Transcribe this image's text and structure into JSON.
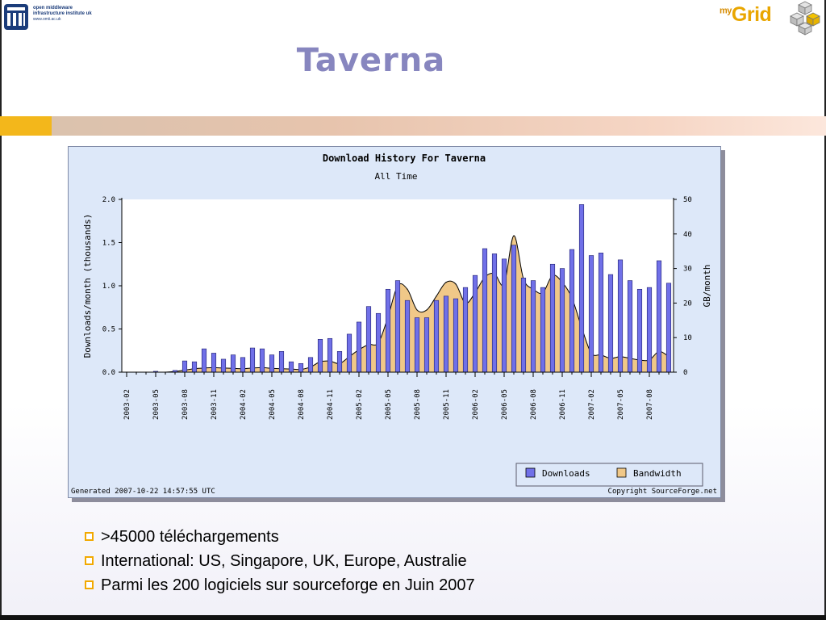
{
  "header": {
    "title": "Taverna",
    "omii_logo": {
      "icon": "omii-logo-icon",
      "line1": "open middleware",
      "line2": "infrastructure institute uk",
      "line3": "www.omii.ac.uk"
    },
    "mygrid_logo": {
      "icon": "mygrid-cube-logo-icon",
      "prefix": "my",
      "word": "Grid"
    }
  },
  "colors": {
    "title": "#8786bf",
    "bullet": "#f2a900",
    "downloads": "#7070e8",
    "bandwidth": "#f0c888",
    "chart_bg": "#dde8f9"
  },
  "chart_data": {
    "type": "bar",
    "title": "Download History For Taverna",
    "subtitle": "All Time",
    "ylabel": "Downloads/month (thousands)",
    "y2label": "GB/month",
    "ylim": [
      0,
      2.0
    ],
    "y2lim": [
      0,
      50
    ],
    "yticks": [
      "0.0",
      "0.5",
      "1.0",
      "1.5",
      "2.0"
    ],
    "y2ticks": [
      "0",
      "10",
      "20",
      "30",
      "40",
      "50"
    ],
    "grid": false,
    "legend_position": "bottom-right",
    "generated": "Generated 2007-10-22 14:57:55 UTC",
    "copyright": "Copyright SourceForge.net",
    "x_tick_labels": [
      "2003-02",
      "2003-05",
      "2003-08",
      "2003-11",
      "2004-02",
      "2004-05",
      "2004-08",
      "2004-11",
      "2005-02",
      "2005-05",
      "2005-08",
      "2005-11",
      "2006-02",
      "2006-05",
      "2006-08",
      "2006-11",
      "2007-02",
      "2007-05",
      "2007-08"
    ],
    "categories": [
      "2003-02",
      "2003-03",
      "2003-04",
      "2003-05",
      "2003-06",
      "2003-07",
      "2003-08",
      "2003-09",
      "2003-10",
      "2003-11",
      "2003-12",
      "2004-01",
      "2004-02",
      "2004-03",
      "2004-04",
      "2004-05",
      "2004-06",
      "2004-07",
      "2004-08",
      "2004-09",
      "2004-10",
      "2004-11",
      "2004-12",
      "2005-01",
      "2005-02",
      "2005-03",
      "2005-04",
      "2005-05",
      "2005-06",
      "2005-07",
      "2005-08",
      "2005-09",
      "2005-10",
      "2005-11",
      "2005-12",
      "2006-01",
      "2006-02",
      "2006-03",
      "2006-04",
      "2006-05",
      "2006-06",
      "2006-07",
      "2006-08",
      "2006-09",
      "2006-10",
      "2006-11",
      "2006-12",
      "2007-01",
      "2007-02",
      "2007-03",
      "2007-04",
      "2007-05",
      "2007-06",
      "2007-07",
      "2007-08",
      "2007-09",
      "2007-10"
    ],
    "series": [
      {
        "name": "Downloads",
        "kind": "bar",
        "axis": "left",
        "values": [
          0.0,
          0.0,
          0.0,
          0.01,
          0.0,
          0.02,
          0.13,
          0.12,
          0.27,
          0.22,
          0.15,
          0.2,
          0.17,
          0.28,
          0.27,
          0.2,
          0.24,
          0.12,
          0.1,
          0.17,
          0.38,
          0.39,
          0.24,
          0.44,
          0.58,
          0.76,
          0.68,
          0.96,
          1.06,
          0.83,
          0.63,
          0.63,
          0.83,
          0.88,
          0.85,
          0.98,
          1.12,
          1.43,
          1.37,
          1.31,
          1.47,
          1.09,
          1.06,
          0.98,
          1.25,
          1.2,
          1.42,
          1.94,
          1.35,
          1.38,
          1.13,
          1.3,
          1.06,
          0.96,
          0.98,
          1.29,
          1.03
        ]
      },
      {
        "name": "Bandwidth",
        "kind": "area",
        "axis": "right",
        "values": [
          0.0,
          0.0,
          0.0,
          0.0,
          0.0,
          0.2,
          0.6,
          1.0,
          1.2,
          1.3,
          1.2,
          1.1,
          1.0,
          1.2,
          1.3,
          1.1,
          1.0,
          0.9,
          0.8,
          1.5,
          3.0,
          3.2,
          2.5,
          4.5,
          6.5,
          8.0,
          8.5,
          16.0,
          25.0,
          24.0,
          18.0,
          18.0,
          22.0,
          26.0,
          25.5,
          20.0,
          23.0,
          27.5,
          28.5,
          25.5,
          39.5,
          27.0,
          24.0,
          23.0,
          28.0,
          26.0,
          21.5,
          13.0,
          5.5,
          5.0,
          4.0,
          4.5,
          4.0,
          3.5,
          3.5,
          6.0,
          4.5
        ]
      }
    ]
  },
  "bullets": [
    ">45000 téléchargements",
    "International: US, Singapore, UK, Europe, Australie",
    "Parmi les 200 logiciels sur sourceforge en Juin 2007"
  ]
}
